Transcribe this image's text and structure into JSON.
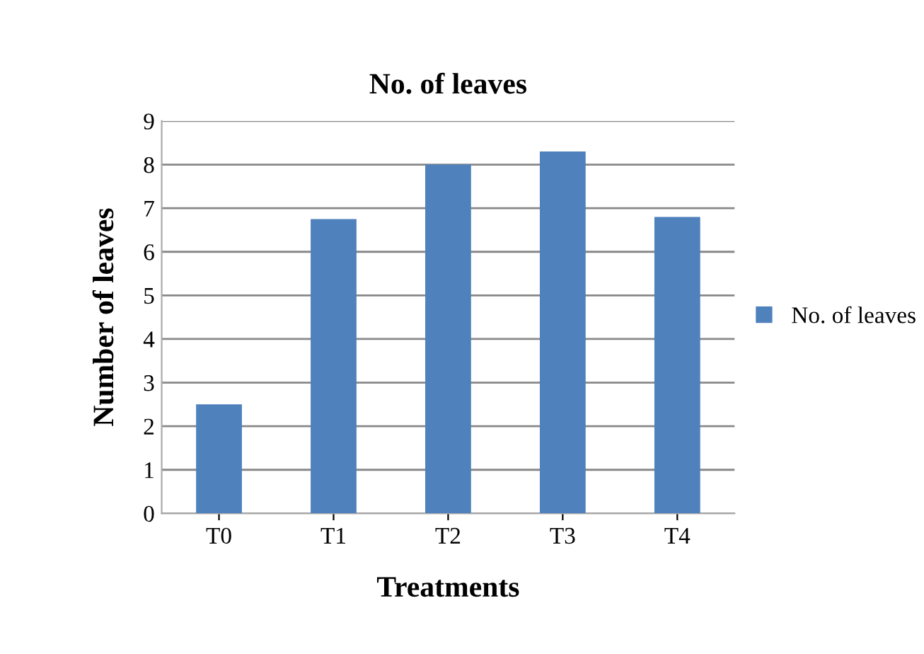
{
  "chart_data": {
    "type": "bar",
    "title": "No. of leaves",
    "xlabel": "Treatments",
    "ylabel": "Number of leaves",
    "categories": [
      "T0",
      "T1",
      "T2",
      "T3",
      "T4"
    ],
    "series": [
      {
        "name": "No. of leaves",
        "color": "#4f81bd",
        "values": [
          2.5,
          6.75,
          8.0,
          8.3,
          6.8
        ]
      }
    ],
    "ylim": [
      0,
      9
    ],
    "yticks": [
      0,
      1,
      2,
      3,
      4,
      5,
      6,
      7,
      8,
      9
    ],
    "grid": "y",
    "legend": "right"
  }
}
